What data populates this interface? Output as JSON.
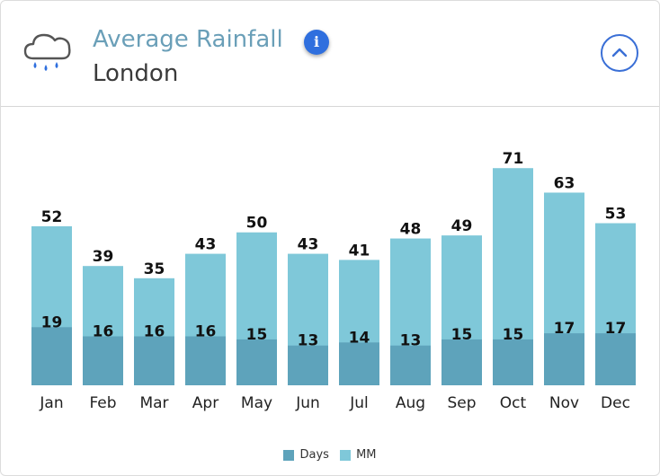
{
  "header": {
    "title": "Average Rainfall",
    "subtitle": "London",
    "icon": "cloud-rain-icon",
    "info_icon_glyph": "i"
  },
  "colors": {
    "days": "#5ea3bb",
    "mm": "#7fc8d9",
    "title": "#6a9fb8",
    "accent": "#3a6fd6"
  },
  "chart_data": {
    "type": "bar",
    "categories": [
      "Jan",
      "Feb",
      "Mar",
      "Apr",
      "May",
      "Jun",
      "Jul",
      "Aug",
      "Sep",
      "Oct",
      "Nov",
      "Dec"
    ],
    "series": [
      {
        "name": "Days",
        "values": [
          19,
          16,
          16,
          16,
          15,
          13,
          14,
          13,
          15,
          15,
          17,
          17
        ]
      },
      {
        "name": "MM",
        "values": [
          52,
          39,
          35,
          43,
          50,
          43,
          41,
          48,
          49,
          71,
          63,
          53
        ]
      }
    ],
    "ylim": [
      0,
      74
    ],
    "grid": false,
    "legend": "bottom-center"
  }
}
